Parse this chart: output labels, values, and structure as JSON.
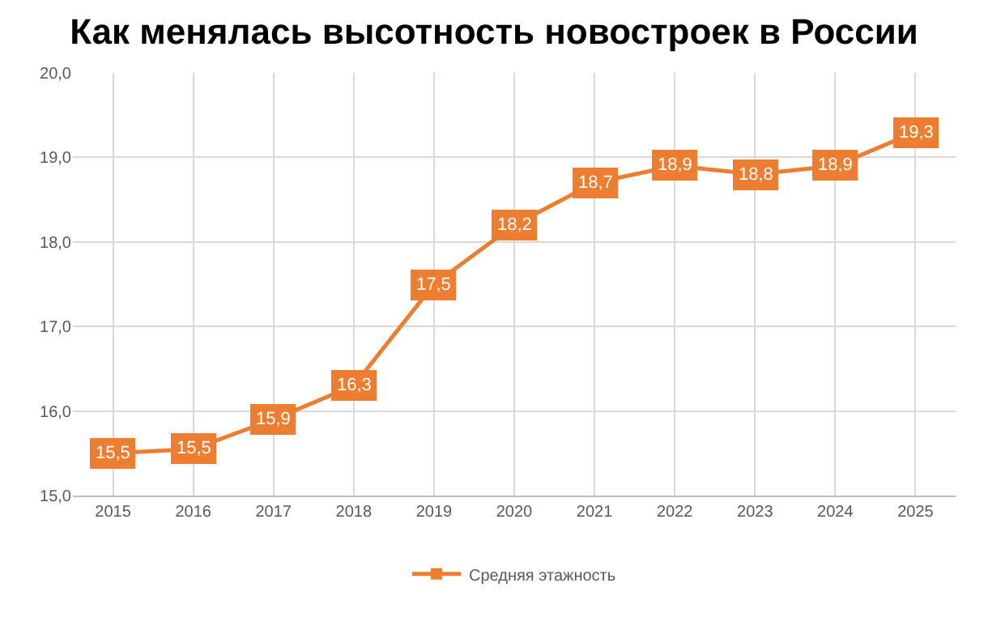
{
  "chart_data": {
    "type": "line",
    "title": "Как менялась высотность новостроек в России",
    "categories": [
      "2015",
      "2016",
      "2017",
      "2018",
      "2019",
      "2020",
      "2021",
      "2022",
      "2023",
      "2024",
      "2025"
    ],
    "series": [
      {
        "name": "Средняя этажность",
        "color": "#ed7d31",
        "values": [
          15.5,
          15.55,
          15.9,
          16.3,
          17.5,
          18.2,
          18.7,
          18.9,
          18.8,
          18.9,
          19.3
        ],
        "value_labels": [
          "15,5",
          "15,5",
          "15,9",
          "16,3",
          "17,5",
          "18,2",
          "18,7",
          "18,9",
          "18,8",
          "18,9",
          "19,3"
        ]
      }
    ],
    "ylim": [
      15,
      20
    ],
    "yticks": [
      {
        "value": 15,
        "label": "15,0"
      },
      {
        "value": 16,
        "label": "16,0"
      },
      {
        "value": 17,
        "label": "17,0"
      },
      {
        "value": 18,
        "label": "18,0"
      },
      {
        "value": 19,
        "label": "19,0"
      },
      {
        "value": 20,
        "label": "20,0"
      }
    ],
    "grid": true,
    "legend": "bottom",
    "marker": "square",
    "line_style": "solid"
  }
}
